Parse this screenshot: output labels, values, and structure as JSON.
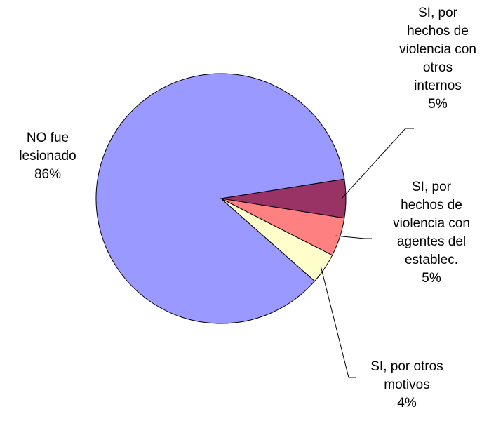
{
  "chart_data": {
    "type": "pie",
    "categories": [
      "SI, por\nhechos de\nviolencia con\notros\ninternos",
      "SI, por\nhechos de\nviolencia con\nagentes del\nestablec.",
      "SI, por otros\nmotivos",
      "NO fue\nlesionado"
    ],
    "values": [
      5,
      5,
      4,
      86
    ],
    "value_labels": [
      "5%",
      "5%",
      "4%",
      "86%"
    ],
    "colors": [
      "#993366",
      "#ff8080",
      "#ffffcc",
      "#9999ff"
    ]
  }
}
